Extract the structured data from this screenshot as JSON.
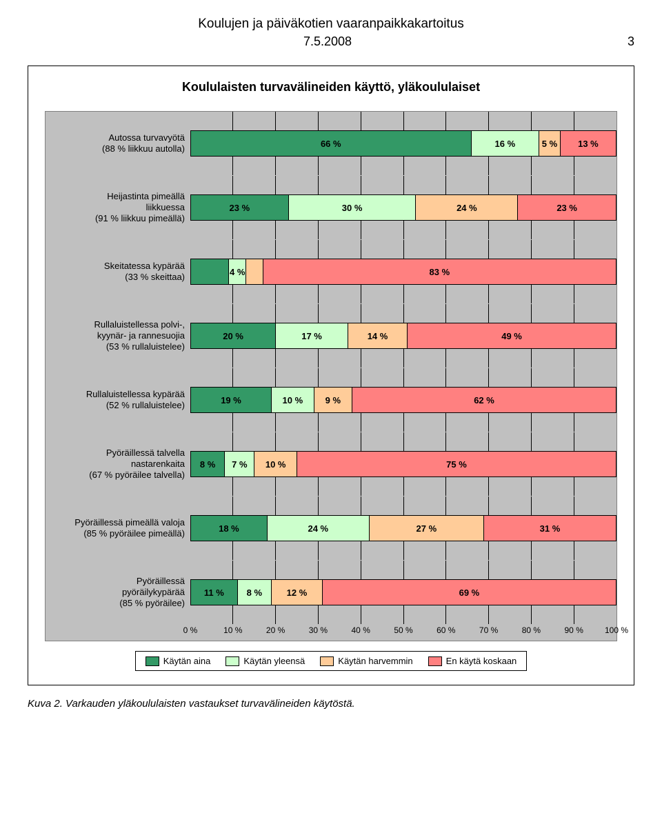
{
  "doc_title": "Koulujen ja päiväkotien vaaranpaikkakartoitus",
  "date": "7.5.2008",
  "page_number": "3",
  "chart": {
    "title": "Koululaisten turvavälineiden käyttö, yläkoululaiset",
    "colors": {
      "series": [
        "#339966",
        "#ccffcc",
        "#ffcc99",
        "#ff8080"
      ],
      "background": "#c0c0c0",
      "grid": "#000000",
      "border": "#000000",
      "text": "#000000"
    },
    "x_ticks": [
      "0 %",
      "10 %",
      "20 %",
      "30 %",
      "40 %",
      "50 %",
      "60 %",
      "70 %",
      "80 %",
      "90 %",
      "100 %"
    ],
    "legend": [
      "Käytän aina",
      "Käytän yleensä",
      "Käytän harvemmin",
      "En käytä koskaan"
    ],
    "rows": [
      {
        "label_lines": [
          "Autossa turvavyötä",
          "(88 % liikkuu autolla)"
        ],
        "segments": [
          {
            "value": 66,
            "label": "66 %"
          },
          {
            "value": 16,
            "label": "16 %"
          },
          {
            "value": 5,
            "label": "5 %"
          },
          {
            "value": 13,
            "label": "13 %"
          }
        ]
      },
      {
        "label_lines": [
          "Heijastinta pimeällä",
          "liikkuessa",
          "(91 % liikkuu pimeällä)"
        ],
        "segments": [
          {
            "value": 23,
            "label": "23 %"
          },
          {
            "value": 30,
            "label": "30 %"
          },
          {
            "value": 24,
            "label": "24 %"
          },
          {
            "value": 23,
            "label": "23 %"
          }
        ]
      },
      {
        "label_lines": [
          "Skeitatessa kypärää",
          "(33 % skeittaa)"
        ],
        "segments": [
          {
            "value": 9,
            "label": ""
          },
          {
            "value": 4,
            "label": "4 %"
          },
          {
            "value": 4,
            "label": ""
          },
          {
            "value": 83,
            "label": "83 %"
          }
        ]
      },
      {
        "label_lines": [
          "Rullaluistellessa polvi-,",
          "kyynär- ja rannesuojia",
          "(53 % rullaluistelee)"
        ],
        "segments": [
          {
            "value": 20,
            "label": "20 %"
          },
          {
            "value": 17,
            "label": "17 %"
          },
          {
            "value": 14,
            "label": "14 %"
          },
          {
            "value": 49,
            "label": "49 %"
          }
        ]
      },
      {
        "label_lines": [
          "Rullaluistellessa kypärää",
          "(52 % rullaluistelee)"
        ],
        "segments": [
          {
            "value": 19,
            "label": "19 %"
          },
          {
            "value": 10,
            "label": "10 %"
          },
          {
            "value": 9,
            "label": "9 %"
          },
          {
            "value": 62,
            "label": "62 %"
          }
        ]
      },
      {
        "label_lines": [
          "Pyöräillessä talvella",
          "nastarenkaita",
          "(67 % pyöräilee talvella)"
        ],
        "segments": [
          {
            "value": 8,
            "label": "8 %"
          },
          {
            "value": 7,
            "label": "7 %"
          },
          {
            "value": 10,
            "label": "10 %"
          },
          {
            "value": 75,
            "label": "75 %"
          }
        ]
      },
      {
        "label_lines": [
          "Pyöräillessä pimeällä valoja",
          "(85 % pyöräilee pimeällä)"
        ],
        "segments": [
          {
            "value": 18,
            "label": "18 %"
          },
          {
            "value": 24,
            "label": "24 %"
          },
          {
            "value": 27,
            "label": "27 %"
          },
          {
            "value": 31,
            "label": "31 %"
          }
        ]
      },
      {
        "label_lines": [
          "Pyöräillessä",
          "pyöräilykypärää",
          "(85 % pyöräilee)"
        ],
        "segments": [
          {
            "value": 11,
            "label": "11 %"
          },
          {
            "value": 8,
            "label": "8 %"
          },
          {
            "value": 12,
            "label": "12 %"
          },
          {
            "value": 69,
            "label": "69 %"
          }
        ]
      }
    ]
  },
  "caption": "Kuva 2. Varkauden yläkoululaisten vastaukset turvavälineiden käytöstä."
}
